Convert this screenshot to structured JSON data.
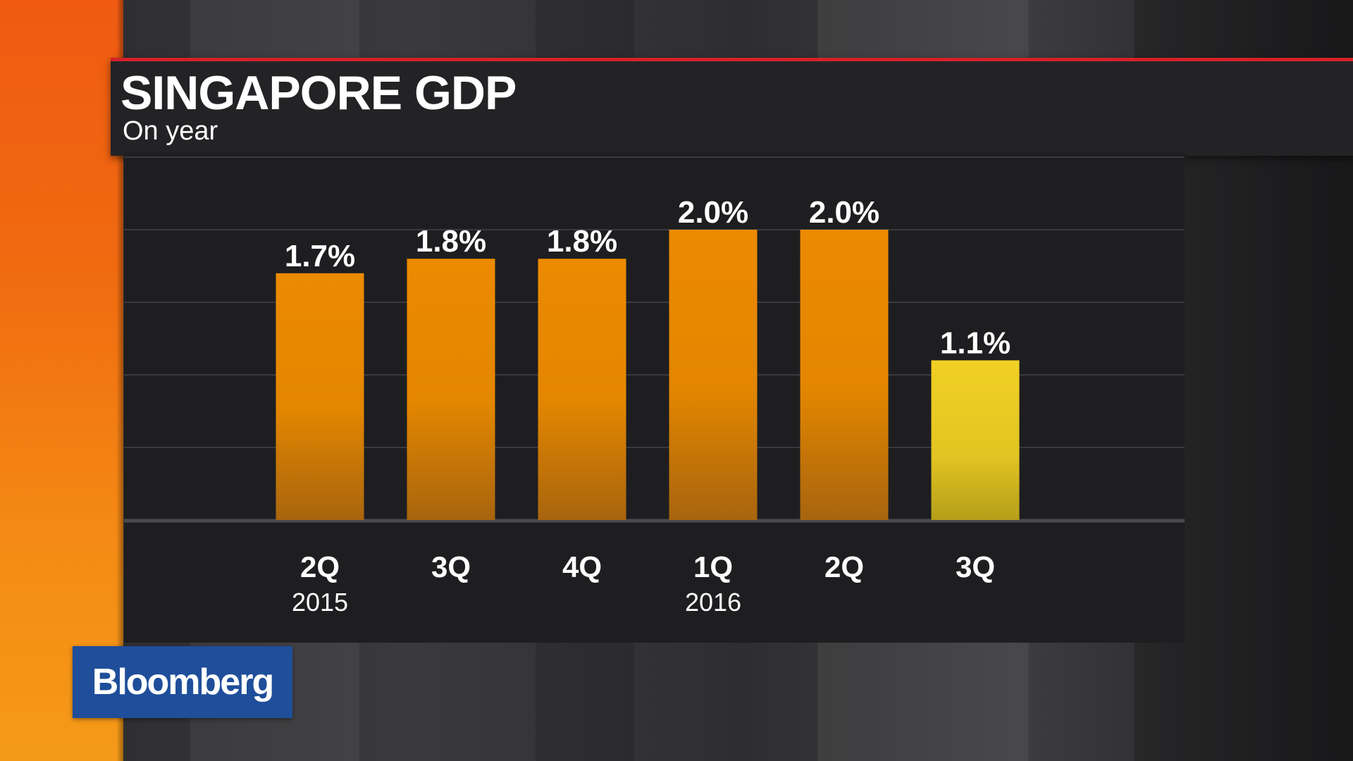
{
  "header": {
    "title": "SINGAPORE GDP",
    "subtitle": "On year"
  },
  "brand": {
    "logo_text": "Bloomberg",
    "logo_color": "#1f4e9a"
  },
  "colors": {
    "accent_red": "#d3222a",
    "bar_orange": "#e88a00",
    "bar_highlight": "#f0cc20",
    "side_band": "#f06a10"
  },
  "chart_data": {
    "type": "bar",
    "title": "SINGAPORE GDP",
    "subtitle": "On year",
    "categories": [
      "2Q",
      "3Q",
      "4Q",
      "1Q",
      "2Q",
      "3Q"
    ],
    "year_labels": [
      "2015",
      "",
      "",
      "2016",
      "",
      ""
    ],
    "values": [
      1.7,
      1.8,
      1.8,
      2.0,
      2.0,
      1.1
    ],
    "value_labels": [
      "1.7%",
      "1.8%",
      "1.8%",
      "2.0%",
      "2.0%",
      "1.1%"
    ],
    "highlight_index": 5,
    "unit": "%",
    "ylim": [
      0,
      2.5
    ],
    "grid": true,
    "xlabel": "",
    "ylabel": ""
  }
}
